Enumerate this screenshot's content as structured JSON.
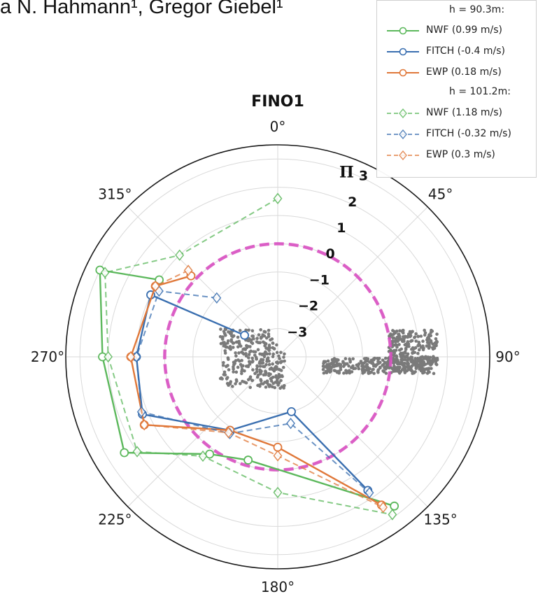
{
  "header": {
    "authors_text": "a N. Hahmann¹, Gregor Giebel¹"
  },
  "chart_data": {
    "type": "polar-line",
    "title": "FINO1",
    "radial_label": "Π",
    "radial_ticks": [
      -3,
      -2,
      -1,
      0,
      1,
      2,
      3
    ],
    "radial_range": [
      -4,
      3.5
    ],
    "angle_ticks": [
      "0°",
      "45°",
      "90°",
      "135°",
      "180°",
      "225°",
      "270°",
      "315°"
    ],
    "angle_direction": "clockwise",
    "angle_zero": "top",
    "reference_circle": {
      "r": 0,
      "color": "#d84fc1",
      "style": "dashed"
    },
    "gray_scatter": "two clusters of grey points near r ≈ -2.5 to -3",
    "colors": {
      "NWF": "#5cb85c",
      "FITCH": "#3a6fb0",
      "EWP": "#e0783a",
      "gray": "#7a7a7a"
    },
    "legend_groups": [
      {
        "header": "h = 90.3m:",
        "series_idx": [
          0,
          1,
          2
        ]
      },
      {
        "header": "h = 101.2m:",
        "series_idx": [
          3,
          4,
          5
        ]
      }
    ],
    "legend_position": "top-right",
    "series": [
      {
        "name": "NWF (0.99 m/s)",
        "model": "NWF",
        "height": "90.3m",
        "marker": "circle",
        "linestyle": "solid",
        "points": [
          [
            303,
            1.0
          ],
          [
            296,
            3.0
          ],
          [
            270,
            2.2
          ],
          [
            238,
            2.4
          ],
          [
            215,
            0.2
          ],
          [
            196,
            -0.2
          ],
          [
            142,
            2.7
          ]
        ]
      },
      {
        "name": "FITCH (-0.4 m/s)",
        "model": "FITCH",
        "height": "90.3m",
        "marker": "circle",
        "linestyle": "solid",
        "points": [
          [
            303,
            -2.6
          ],
          [
            296,
            1.0
          ],
          [
            270,
            1.0
          ],
          [
            247,
            1.2
          ],
          [
            213,
            -0.9
          ],
          [
            166,
            -2.0
          ],
          [
            146,
            1.7
          ]
        ]
      },
      {
        "name": "EWP (0.18 m/s)",
        "model": "EWP",
        "height": "90.3m",
        "marker": "circle",
        "linestyle": "solid",
        "points": [
          [
            313,
            0.2
          ],
          [
            300,
            1.0
          ],
          [
            270,
            1.2
          ],
          [
            243,
            1.3
          ],
          [
            213,
            -0.9
          ],
          [
            180,
            -0.8
          ],
          [
            145,
            2.4
          ]
        ]
      },
      {
        "name": "NWF (1.18 m/s)",
        "model": "NWF",
        "height": "101.2m",
        "marker": "diamond",
        "linestyle": "dashed",
        "points": [
          [
            360,
            1.6
          ],
          [
            316,
            1.0
          ],
          [
            296,
            2.8
          ],
          [
            270,
            2.0
          ],
          [
            236,
            2.0
          ],
          [
            217,
            0.4
          ],
          [
            180,
            0.8
          ],
          [
            144,
            2.9
          ]
        ]
      },
      {
        "name": "FITCH (-0.32 m/s)",
        "model": "FITCH",
        "height": "101.2m",
        "marker": "diamond",
        "linestyle": "dashed",
        "points": [
          [
            314,
            -1.0
          ],
          [
            299,
            0.8
          ],
          [
            270,
            1.0
          ],
          [
            248,
            1.2
          ],
          [
            212,
            -0.8
          ],
          [
            169,
            -1.6
          ],
          [
            146,
            1.8
          ]
        ]
      },
      {
        "name": "EWP (0.3 m/s)",
        "model": "EWP",
        "height": "101.2m",
        "marker": "diamond",
        "linestyle": "dashed",
        "points": [
          [
            314,
            0.4
          ],
          [
            300,
            1.0
          ],
          [
            270,
            1.2
          ],
          [
            243,
            1.3
          ],
          [
            213,
            -0.8
          ],
          [
            180,
            -0.5
          ],
          [
            145,
            2.5
          ]
        ]
      }
    ]
  }
}
